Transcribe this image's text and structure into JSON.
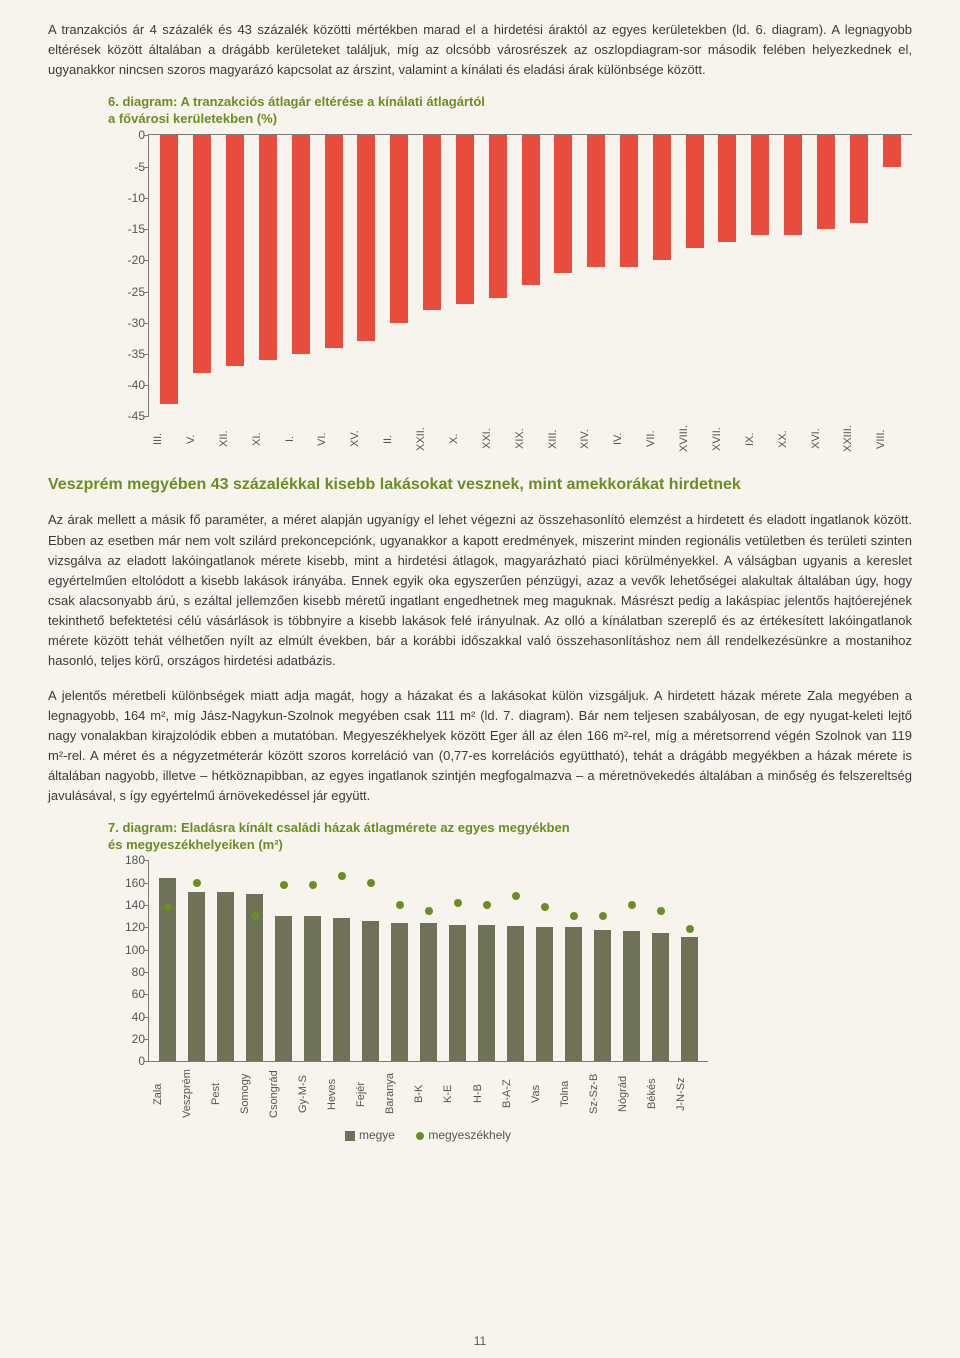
{
  "para1": "A tranzakciós ár 4 százalék és 43 százalék közötti mértékben marad el a hirdetési áraktól az egyes kerületekben (ld. 6. diagram). A legnagyobb eltérések között általában a drágább kerületeket találjuk, míg az olcsóbb városrészek az oszlopdiagram-sor második felében helyezkednek el, ugyanakkor nincsen szoros magyarázó kapcsolat az árszint, valamint a kínálati és eladási árak különbsége között.",
  "chart6": {
    "type": "bar",
    "title_line1": "6. diagram: A tranzakciós átlagár eltérése a kínálati átlagártól",
    "title_line2": "a fővárosi kerületekben (%)",
    "ylim_min": -45,
    "ylim_max": 0,
    "ytick_step": 5,
    "bar_color": "#e84c3d",
    "axis_color": "#7a7a7a",
    "background_color": "#f7f4ed",
    "yticks": [
      "0",
      "-5",
      "-10",
      "-15",
      "-20",
      "-25",
      "-30",
      "-35",
      "-40",
      "-45"
    ],
    "categories": [
      "III.",
      "V.",
      "XII.",
      "XI.",
      "I.",
      "VI.",
      "XV.",
      "II.",
      "XXII.",
      "X.",
      "XXI.",
      "XIX.",
      "XIII.",
      "XIV.",
      "IV.",
      "VII.",
      "XVIII.",
      "XVII.",
      "IX.",
      "XX.",
      "XVI.",
      "XXIII.",
      "VIII."
    ],
    "values": [
      -43,
      -38,
      -37,
      -36,
      -35,
      -34,
      -33,
      -30,
      -28,
      -27,
      -26,
      -24,
      -22,
      -21,
      -21,
      -20,
      -18,
      -17,
      -16,
      -16,
      -15,
      -14,
      -5
    ]
  },
  "section_title": "Veszprém megyében 43 százalékkal kisebb lakásokat vesznek, mint amekkorákat hirdetnek",
  "para2": "Az árak mellett a másik fő paraméter, a méret alapján ugyanígy el lehet végezni az összehasonlító elemzést a hirdetett és eladott ingatlanok között. Ebben az esetben már nem volt szilárd prekoncepciónk, ugyanakkor a kapott eredmények, miszerint minden regionális vetületben és területi szinten vizsgálva az eladott lakóingatlanok mérete kisebb, mint a hirdetési átlagok, magyarázható piaci körülményekkel. A válságban ugyanis a kereslet egyértelműen eltolódott a kisebb lakások irányába. Ennek egyik oka egyszerűen pénzügyi, azaz a vevők lehetőségei alakultak általában úgy, hogy csak alacsonyabb árú, s ezáltal jellemzően kisebb méretű ingatlant engedhetnek meg maguknak. Másrészt pedig a lakáspiac jelentős hajtóerejének tekinthető befektetési célú vásárlások is többnyire a kisebb lakások felé irányulnak. Az olló a kínálatban szereplő és az értékesített lakóingatlanok mérete között tehát vélhetően nyílt az elmúlt években, bár a korábbi időszakkal való összehasonlításhoz nem áll rendelkezésünkre a mostanihoz hasonló, teljes körű, országos hirdetési adatbázis.",
  "para3": "A jelentős méretbeli különbségek miatt adja magát, hogy a házakat és a lakásokat külön vizsgáljuk. A hirdetett házak mérete Zala megyében a legnagyobb, 164 m², míg Jász-Nagykun-Szolnok megyében csak 111 m² (ld. 7. diagram). Bár nem teljesen szabályosan, de egy nyugat-keleti lejtő nagy vonalakban kirajzolódik ebben a mutatóban. Megyeszékhelyek között Eger áll az élen 166 m²-rel, míg a méretsorrend végén Szolnok van 119 m²-rel. A méret és a négyzetméterár között szoros korreláció van (0,77-es korrelációs együttható), tehát a drágább megyékben a házak mérete is általában nagyobb, illetve – hétköznapibban, az egyes ingatlanok szintjén megfogalmazva – a méretnövekedés általában a minőség és felszereltség javulásával, s így egyértelmű árnövekedéssel jár együtt.",
  "chart7": {
    "type": "bar_with_dots",
    "title_line1": "7. diagram: Eladásra kínált családi házak átlagmérete az egyes megyékben",
    "title_line2": "és megyeszékhelyeiken (m²)",
    "ylim_min": 0,
    "ylim_max": 180,
    "ytick_step": 20,
    "bar_color": "#707258",
    "dot_color": "#6b8e23",
    "axis_color": "#7a7a7a",
    "background_color": "#f7f4ed",
    "yticks": [
      "180",
      "160",
      "140",
      "120",
      "100",
      "80",
      "60",
      "40",
      "20",
      "0"
    ],
    "categories": [
      "Zala",
      "Veszprém",
      "Pest",
      "Somogy",
      "Csongrád",
      "Gy-M-S",
      "Heves",
      "Fejér",
      "Baranya",
      "B-K",
      "K-E",
      "H-B",
      "B-A-Z",
      "Vas",
      "Tolna",
      "Sz-Sz-B",
      "Nógrád",
      "Békés",
      "J-N-Sz"
    ],
    "bar_values": [
      164,
      152,
      152,
      150,
      130,
      130,
      128,
      126,
      124,
      124,
      122,
      122,
      121,
      120,
      120,
      118,
      117,
      115,
      111
    ],
    "dot_values": [
      138,
      160,
      null,
      130,
      158,
      158,
      166,
      160,
      140,
      135,
      142,
      140,
      148,
      138,
      130,
      130,
      140,
      135,
      119
    ],
    "legend_bar": "megye",
    "legend_dot": "megyeszékhely"
  },
  "page_number": "11"
}
